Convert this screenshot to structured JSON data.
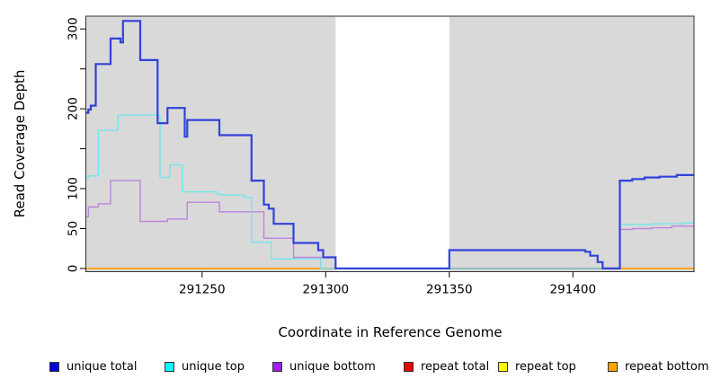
{
  "chart_data": {
    "type": "line",
    "step": true,
    "title": "",
    "xlabel": "Coordinate in Reference Genome",
    "ylabel": "Read Coverage Depth",
    "xlim": [
      291203,
      291449
    ],
    "ylim": [
      -4,
      316
    ],
    "grid": false,
    "plot_background": "#d9d9d9",
    "gap_band": {
      "from": 291304,
      "to": 291350,
      "color": "#ffffff"
    },
    "x_ticks": [
      {
        "v": 291250,
        "label": "291250"
      },
      {
        "v": 291300,
        "label": "291300"
      },
      {
        "v": 291350,
        "label": "291350"
      },
      {
        "v": 291400,
        "label": "291400"
      }
    ],
    "y_ticks": [
      {
        "v": 0,
        "label": "0"
      },
      {
        "v": 50,
        "label": "50"
      },
      {
        "v": 100,
        "label": "100"
      },
      {
        "v": 150,
        "label": ""
      },
      {
        "v": 200,
        "label": "200"
      },
      {
        "v": 250,
        "label": ""
      },
      {
        "v": 300,
        "label": "300"
      }
    ],
    "series": [
      {
        "name": "repeat top",
        "color": "#ffff00",
        "line_color": "#ffe800",
        "width": 1.4,
        "above_gap": false,
        "end": 291449,
        "steps": [
          [
            291203,
            0
          ]
        ]
      },
      {
        "name": "repeat bottom",
        "color": "#ffa500",
        "line_color": "#ffa41e",
        "width": 2,
        "above_gap": false,
        "end": 291449,
        "steps": [
          [
            291203,
            0
          ]
        ]
      },
      {
        "name": "repeat total",
        "color": "#ee0000",
        "line_color": "#c43f5e",
        "width": 1.6,
        "above_gap": false,
        "end": 291419,
        "steps": [
          [
            291347,
            0
          ]
        ]
      },
      {
        "name": "unique bottom",
        "color": "#a020f0",
        "line_color": "#bd84dc",
        "width": 1.4,
        "above_gap": true,
        "end": 291449,
        "steps": [
          [
            291203,
            65
          ],
          [
            291204,
            77
          ],
          [
            291208,
            81
          ],
          [
            291213,
            110
          ],
          [
            291225,
            59
          ],
          [
            291236,
            62
          ],
          [
            291244,
            83
          ],
          [
            291257,
            71
          ],
          [
            291275,
            38
          ],
          [
            291287,
            14
          ],
          [
            291298,
            0
          ],
          [
            291419,
            49
          ],
          [
            291424,
            50
          ],
          [
            291432,
            51
          ],
          [
            291440,
            53
          ]
        ]
      },
      {
        "name": "unique top",
        "color": "#00ffff",
        "line_color": "#74e6ea",
        "width": 1.4,
        "above_gap": true,
        "end": 291449,
        "steps": [
          [
            291203,
            114
          ],
          [
            291204,
            116
          ],
          [
            291208,
            173
          ],
          [
            291216,
            192
          ],
          [
            291233,
            114
          ],
          [
            291237,
            130
          ],
          [
            291242,
            96
          ],
          [
            291256,
            93
          ],
          [
            291258,
            92
          ],
          [
            291267,
            89
          ],
          [
            291270,
            33
          ],
          [
            291278,
            12
          ],
          [
            291298,
            0
          ],
          [
            291419,
            55
          ],
          [
            291432,
            56
          ],
          [
            291445,
            57
          ]
        ]
      },
      {
        "name": "unique total",
        "color": "#0000dd",
        "line_color": "#3142d9",
        "width": 2.2,
        "above_gap": true,
        "end": 291449,
        "steps": [
          [
            291203,
            195
          ],
          [
            291204,
            199
          ],
          [
            291205,
            204
          ],
          [
            291207,
            256
          ],
          [
            291213,
            288
          ],
          [
            291217,
            283
          ],
          [
            291218,
            310
          ],
          [
            291225,
            261
          ],
          [
            291232,
            182
          ],
          [
            291236,
            201
          ],
          [
            291243,
            165
          ],
          [
            291244,
            186
          ],
          [
            291257,
            167
          ],
          [
            291270,
            110
          ],
          [
            291275,
            80
          ],
          [
            291277,
            75
          ],
          [
            291279,
            56
          ],
          [
            291287,
            32
          ],
          [
            291297,
            23
          ],
          [
            291299,
            14
          ],
          [
            291304,
            0
          ],
          [
            291350,
            23
          ],
          [
            291405,
            21
          ],
          [
            291407,
            16
          ],
          [
            291410,
            8
          ],
          [
            291412,
            0
          ],
          [
            291419,
            110
          ],
          [
            291424,
            112
          ],
          [
            291429,
            114
          ],
          [
            291435,
            115
          ],
          [
            291442,
            117
          ]
        ]
      }
    ]
  },
  "legend": {
    "items": [
      {
        "label": "unique total",
        "color": "#0000dd"
      },
      {
        "label": "unique top",
        "color": "#00ffff"
      },
      {
        "label": "unique bottom",
        "color": "#a020f0"
      },
      {
        "label": "repeat total",
        "color": "#ee0000"
      },
      {
        "label": "repeat top",
        "color": "#ffff00"
      },
      {
        "label": "repeat bottom",
        "color": "#ffa500"
      }
    ]
  }
}
